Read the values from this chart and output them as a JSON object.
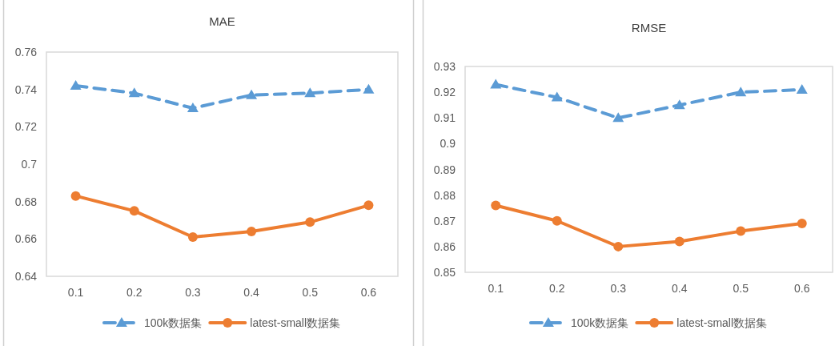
{
  "chart_data": [
    {
      "type": "line",
      "title": "MAE",
      "categories": [
        "0.1",
        "0.2",
        "0.3",
        "0.4",
        "0.5",
        "0.6"
      ],
      "ylim": [
        0.64,
        0.76
      ],
      "yticks": [
        0.64,
        0.66,
        0.68,
        0.7,
        0.72,
        0.74,
        0.76
      ],
      "grid": false,
      "legend": "bottom",
      "series": [
        {
          "name": "100k数据集",
          "color": "#5b9bd5",
          "line_style": "dashed",
          "marker": "triangle",
          "values": [
            0.742,
            0.738,
            0.73,
            0.737,
            0.738,
            0.74
          ]
        },
        {
          "name": "latest-small数据集",
          "color": "#ed7d31",
          "line_style": "solid",
          "marker": "circle",
          "values": [
            0.683,
            0.675,
            0.661,
            0.664,
            0.669,
            0.678
          ]
        }
      ]
    },
    {
      "type": "line",
      "title": "RMSE",
      "categories": [
        "0.1",
        "0.2",
        "0.3",
        "0.4",
        "0.5",
        "0.6"
      ],
      "ylim": [
        0.85,
        0.93
      ],
      "yticks": [
        0.85,
        0.86,
        0.87,
        0.88,
        0.89,
        0.9,
        0.91,
        0.92,
        0.93
      ],
      "grid": false,
      "legend": "bottom",
      "series": [
        {
          "name": "100k数据集",
          "color": "#5b9bd5",
          "line_style": "dashed",
          "marker": "triangle",
          "values": [
            0.923,
            0.918,
            0.91,
            0.915,
            0.92,
            0.921
          ]
        },
        {
          "name": "latest-small数据集",
          "color": "#ed7d31",
          "line_style": "solid",
          "marker": "circle",
          "values": [
            0.876,
            0.87,
            0.86,
            0.862,
            0.866,
            0.869
          ]
        }
      ]
    }
  ]
}
